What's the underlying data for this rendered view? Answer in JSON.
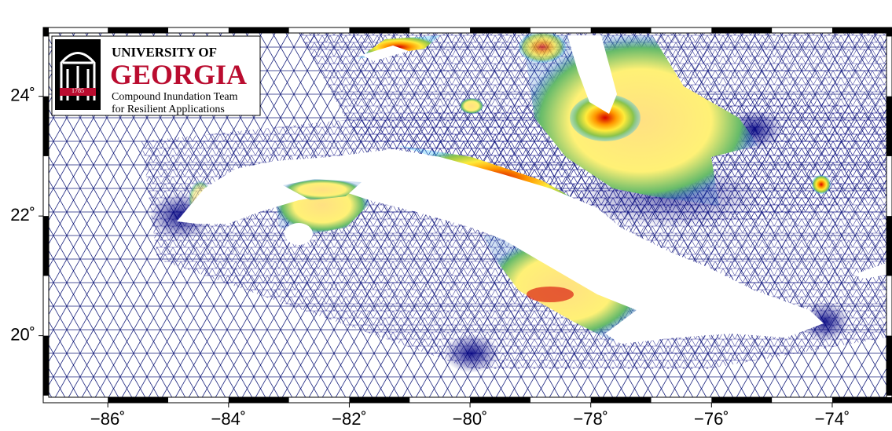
{
  "logo": {
    "line1": "UNIVERSITY OF",
    "line2": "GEORGIA",
    "line3": "Compound Inundation Team",
    "line4": "for Resilient Applications",
    "year": "1785"
  },
  "map": {
    "xlim": [
      -87.07,
      -73.01
    ],
    "ylim": [
      18.88,
      25.15
    ],
    "xticks": [
      {
        "value": -86,
        "label": "−86˚"
      },
      {
        "value": -84,
        "label": "−84˚"
      },
      {
        "value": -82,
        "label": "−82˚"
      },
      {
        "value": -80,
        "label": "−80˚"
      },
      {
        "value": -78,
        "label": "−78˚"
      },
      {
        "value": -76,
        "label": "−76˚"
      },
      {
        "value": -74,
        "label": "−74˚"
      }
    ],
    "yticks": [
      {
        "value": 20,
        "label": "20˚"
      },
      {
        "value": 22,
        "label": "22˚"
      },
      {
        "value": 24,
        "label": "24˚"
      }
    ]
  }
}
